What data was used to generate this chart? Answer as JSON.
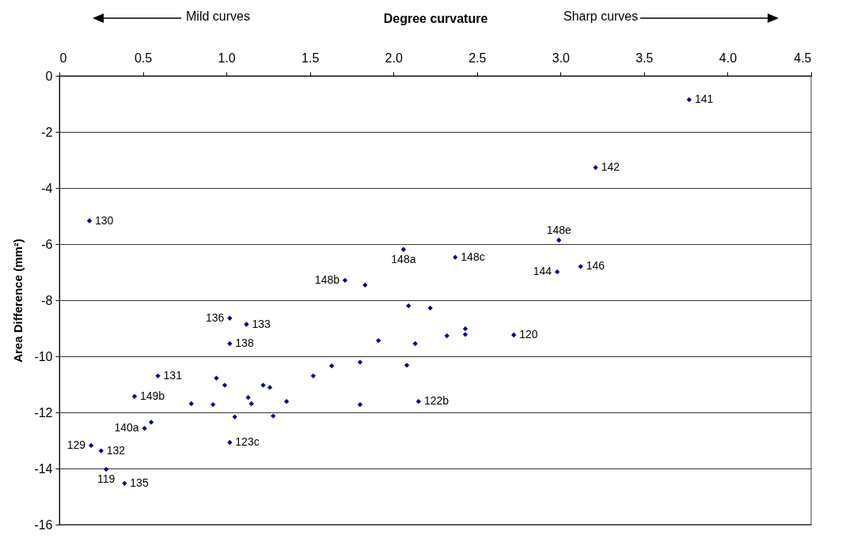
{
  "chart_data": {
    "type": "scatter",
    "xlabel": "Degree curvature",
    "ylabel": "Area Difference  (mm²)",
    "annotations": [
      "Mild curves",
      "Sharp curves",
      {
        "text": "141",
        "x": 3.77,
        "y": -0.85
      },
      {
        "text": "142",
        "x": 3.21,
        "y": -3.27
      },
      {
        "text": "130",
        "x": 0.18,
        "y": -5.17
      },
      {
        "text": "148a",
        "x": 2.06,
        "y": -6.19
      },
      {
        "text": "148e",
        "x": 2.99,
        "y": -5.86
      },
      {
        "text": "148c",
        "x": 2.37,
        "y": -6.47
      },
      {
        "text": "144",
        "x": 2.98,
        "y": -6.99
      },
      {
        "text": "146",
        "x": 3.12,
        "y": -6.8
      },
      {
        "text": "148b",
        "x": 1.71,
        "y": -7.29
      },
      {
        "text": "136",
        "x": 1.02,
        "y": -8.64
      },
      {
        "text": "133",
        "x": 1.12,
        "y": -8.86
      },
      {
        "text": "138",
        "x": 1.02,
        "y": -9.55
      },
      {
        "text": "120",
        "x": 2.72,
        "y": -9.24
      },
      {
        "text": "131",
        "x": 0.59,
        "y": -10.7
      },
      {
        "text": "149b",
        "x": 0.45,
        "y": -11.43
      },
      {
        "text": "122b",
        "x": 2.15,
        "y": -11.61
      },
      {
        "text": "140a",
        "x": 0.51,
        "y": -12.57
      },
      {
        "text": "123c",
        "x": 1.02,
        "y": -13.07
      },
      {
        "text": "129",
        "x": 0.19,
        "y": -13.18
      },
      {
        "text": "132",
        "x": 0.25,
        "y": -13.37
      },
      {
        "text": "119",
        "x": 0.28,
        "y": -14.03
      },
      {
        "text": "135",
        "x": 0.39,
        "y": -14.53
      }
    ],
    "xlim": [
      0,
      4.5
    ],
    "xticks": [
      0,
      0.5,
      {
        "value": 1,
        "label": "1.0"
      },
      1.5,
      {
        "value": 2,
        "label": "2.0"
      },
      2.5,
      {
        "value": 3,
        "label": "3.0"
      },
      3.5,
      {
        "value": 4,
        "label": "4.0"
      },
      4.5
    ],
    "ylim": [
      -16,
      0
    ],
    "yticks": [
      0,
      -2,
      -4,
      -6,
      -8,
      -10,
      -12,
      -14,
      -16
    ],
    "grid": "y",
    "marker": "diamond",
    "series": [
      {
        "color": "#000080",
        "x": [
          3.77,
          3.21,
          0.18,
          2.06,
          2.99,
          2.37,
          2.98,
          3.12,
          1.71,
          1.83,
          2.09,
          2.22,
          1.02,
          1.12,
          1.02,
          1.91,
          2.13,
          2.32,
          2.43,
          2.43,
          2.72,
          1.8,
          2.08,
          0.59,
          1.52,
          1.63,
          0.94,
          0.99,
          1.22,
          1.26,
          0.45,
          0.79,
          0.92,
          1.13,
          1.15,
          1.36,
          1.8,
          2.15,
          1.05,
          1.28,
          0.55,
          0.51,
          1.02,
          0.19,
          0.25,
          0.28,
          0.39
        ],
        "values": [
          -0.85,
          -3.27,
          -5.17,
          -6.19,
          -5.86,
          -6.47,
          -6.99,
          -6.8,
          -7.29,
          -7.46,
          -8.2,
          -8.28,
          -8.64,
          -8.86,
          -9.55,
          -9.44,
          -9.55,
          -9.27,
          -9.02,
          -9.22,
          -9.24,
          -10.21,
          -10.32,
          -10.7,
          -10.7,
          -10.34,
          -10.78,
          -11.03,
          -11.03,
          -11.11,
          -11.43,
          -11.69,
          -11.72,
          -11.47,
          -11.69,
          -11.61,
          -11.72,
          -11.61,
          -12.16,
          -12.13,
          -12.35,
          -12.57,
          -13.07,
          -13.18,
          -13.37,
          -14.03,
          -14.53
        ]
      }
    ]
  }
}
